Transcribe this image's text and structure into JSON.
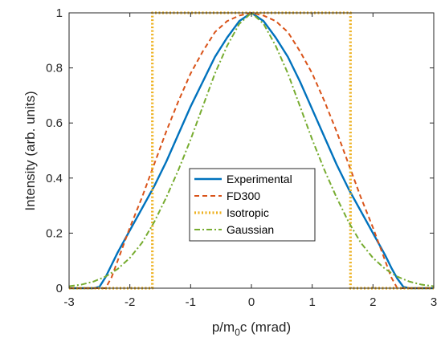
{
  "chart_data": {
    "type": "line",
    "xlabel": "p/m",
    "xlabel_sub": "0",
    "xlabel_suffix": "c (mrad)",
    "ylabel": "Intensity (arb. units)",
    "xlim": [
      -3,
      3
    ],
    "ylim": [
      0,
      1
    ],
    "xticks": [
      -3,
      -2,
      -1,
      0,
      1,
      2,
      3
    ],
    "yticks": [
      0,
      0.2,
      0.4,
      0.6,
      0.8,
      1
    ],
    "xtick_labels": [
      "-3",
      "-2",
      "-1",
      "0",
      "1",
      "2",
      "3"
    ],
    "ytick_labels": [
      "0",
      "0.2",
      "0.4",
      "0.6",
      "0.8",
      "1"
    ],
    "grid": false,
    "legend_position": "center-bottom",
    "series": [
      {
        "name": "Experimental",
        "color": "#0072BD",
        "style": "solid",
        "x": [
          -3,
          -2.6,
          -2.5,
          -2.4,
          -2.3,
          -2.2,
          -2.0,
          -1.8,
          -1.6,
          -1.4,
          -1.2,
          -1.0,
          -0.8,
          -0.6,
          -0.4,
          -0.2,
          0,
          0.2,
          0.4,
          0.6,
          0.8,
          1.0,
          1.2,
          1.4,
          1.6,
          1.8,
          2.0,
          2.2,
          2.3,
          2.4,
          2.5,
          2.6,
          3
        ],
        "y": [
          0,
          0,
          0.005,
          0.04,
          0.085,
          0.13,
          0.21,
          0.29,
          0.37,
          0.46,
          0.56,
          0.66,
          0.75,
          0.84,
          0.91,
          0.97,
          1.0,
          0.97,
          0.91,
          0.84,
          0.75,
          0.65,
          0.55,
          0.45,
          0.36,
          0.28,
          0.2,
          0.12,
          0.075,
          0.035,
          0.005,
          0,
          0
        ]
      },
      {
        "name": "FD300",
        "color": "#D95319",
        "style": "dashed",
        "x": [
          -3,
          -2.4,
          -2.3,
          -2.2,
          -2.0,
          -1.8,
          -1.6,
          -1.4,
          -1.2,
          -1.0,
          -0.8,
          -0.6,
          -0.4,
          -0.2,
          0,
          0.2,
          0.4,
          0.6,
          0.8,
          1.0,
          1.2,
          1.4,
          1.6,
          1.8,
          2.0,
          2.2,
          2.3,
          2.4,
          3
        ],
        "y": [
          0,
          0,
          0.04,
          0.1,
          0.22,
          0.33,
          0.45,
          0.57,
          0.68,
          0.78,
          0.86,
          0.93,
          0.97,
          0.99,
          1.0,
          0.99,
          0.97,
          0.93,
          0.86,
          0.78,
          0.68,
          0.57,
          0.45,
          0.33,
          0.22,
          0.1,
          0.04,
          0,
          0
        ]
      },
      {
        "name": "Isotropic",
        "color": "#EDB120",
        "style": "dotted",
        "x": [
          -3,
          -1.63,
          -1.63,
          1.63,
          1.63,
          3
        ],
        "y": [
          0,
          0,
          1,
          1,
          0,
          0
        ]
      },
      {
        "name": "Gaussian",
        "color": "#77AC30",
        "style": "dashdot",
        "x": [
          -3,
          -2.8,
          -2.6,
          -2.4,
          -2.2,
          -2.0,
          -1.8,
          -1.6,
          -1.4,
          -1.2,
          -1.0,
          -0.8,
          -0.6,
          -0.4,
          -0.2,
          0,
          0.2,
          0.4,
          0.6,
          0.8,
          1.0,
          1.2,
          1.4,
          1.6,
          1.8,
          2.0,
          2.2,
          2.4,
          2.6,
          2.8,
          3
        ],
        "y": [
          0.007,
          0.013,
          0.024,
          0.042,
          0.07,
          0.11,
          0.165,
          0.24,
          0.33,
          0.43,
          0.54,
          0.66,
          0.78,
          0.88,
          0.96,
          1.0,
          0.96,
          0.88,
          0.78,
          0.66,
          0.54,
          0.43,
          0.33,
          0.24,
          0.165,
          0.11,
          0.07,
          0.042,
          0.024,
          0.013,
          0.007
        ]
      }
    ]
  }
}
